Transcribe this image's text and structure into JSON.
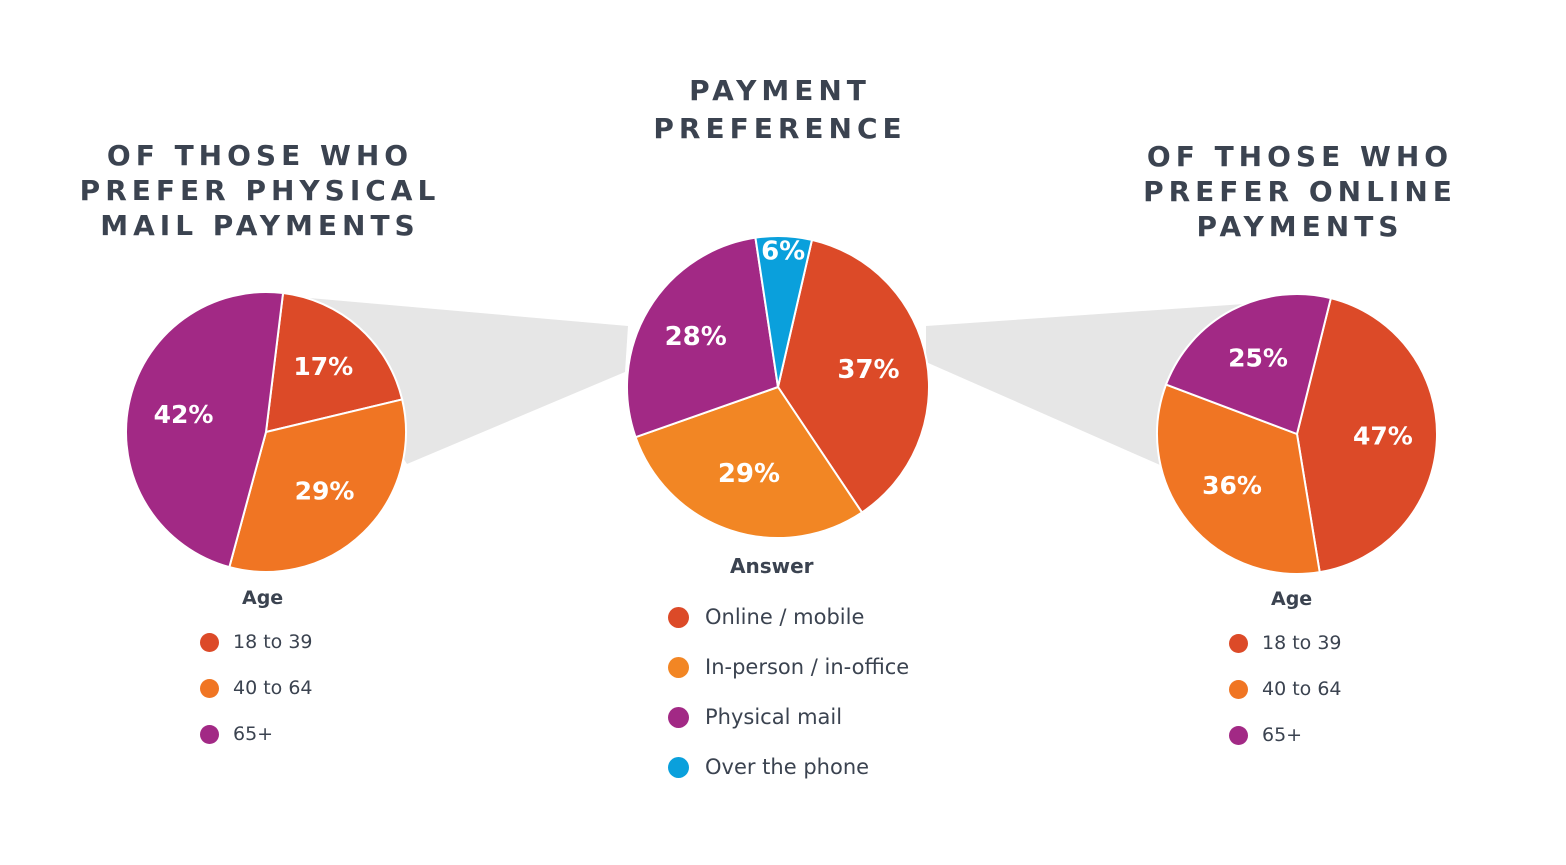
{
  "colors": {
    "c_18_39": "#dc4a28",
    "c_40_64": "#f07523",
    "c_65": "#a22985",
    "online": "#dc4a28",
    "inperson": "#f28624",
    "mail": "#a22985",
    "phone": "#0aa0dc",
    "connector": "#e6e6e6"
  },
  "chart_data": [
    {
      "type": "pie",
      "title": "OF THOSE WHO\nPREFER PHYSICAL\nMAIL PAYMENTS",
      "legend_title": "Age",
      "legend_placement": "below",
      "slices": [
        {
          "label": "18 to 39",
          "value": 17,
          "text": "17%"
        },
        {
          "label": "40 to 64",
          "value": 29,
          "text": "29%"
        },
        {
          "label": "65+",
          "value": 42,
          "text": "42%"
        }
      ]
    },
    {
      "type": "pie",
      "title": "PAYMENT\nPREFERENCE",
      "legend_title": "Answer",
      "legend_placement": "below",
      "slices": [
        {
          "label": "Online / mobile",
          "value": 37,
          "text": "37%"
        },
        {
          "label": "In-person / in-office",
          "value": 29,
          "text": "29%"
        },
        {
          "label": "Physical mail",
          "value": 28,
          "text": "28%"
        },
        {
          "label": "Over the phone",
          "value": 6,
          "text": "6%"
        }
      ]
    },
    {
      "type": "pie",
      "title": "OF THOSE WHO\nPREFER ONLINE\nPAYMENTS",
      "legend_title": "Age",
      "legend_placement": "below",
      "slices": [
        {
          "label": "18 to 39",
          "value": 47,
          "text": "47%"
        },
        {
          "label": "40 to 64",
          "value": 36,
          "text": "36%"
        },
        {
          "label": "65+",
          "value": 25,
          "text": "25%"
        }
      ]
    }
  ]
}
